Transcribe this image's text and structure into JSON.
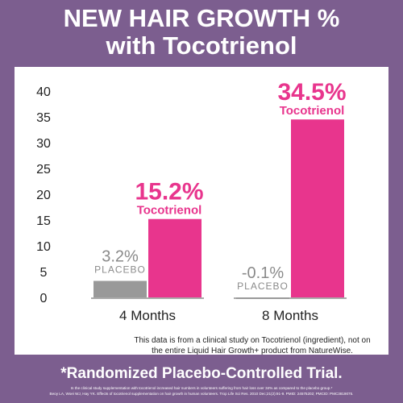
{
  "title": {
    "line1": "NEW HAIR GROWTH %",
    "line2": "with Tocotrienol"
  },
  "colors": {
    "background": "#7c5e8f",
    "tocotrienol": "#e8358d",
    "placebo": "#999999",
    "axis_text": "#222222"
  },
  "note": {
    "line1": "This data is from a clinical study on Tocotrienol (ingredient), not on",
    "line2": "the entire Liquid Hair Growth+ product from NatureWise."
  },
  "footer": {
    "headline": "*Randomized Placebo-Controlled Trial.",
    "citation1": "In the clinical study supplementation with tocotrienol increased hair numbers in volunteers suffering from hair loss over 34% as compared to the placebo group.*",
    "citation2": "Beoy LA, Woei WJ, Hay YK. Effects of tocotrienol supplementation on hair growth in human volunteers. Trop Life Sci Res. 2010 Dec;21(2):91-9. PMID: 24575202; PMCID: PMC3819075."
  },
  "chart_data": {
    "type": "bar",
    "categories": [
      "4 Months",
      "8 Months"
    ],
    "ylim": [
      0,
      40
    ],
    "yticks": [
      0,
      5,
      10,
      15,
      20,
      25,
      30,
      35,
      40
    ],
    "grid": false,
    "series": [
      {
        "name": "PLACEBO",
        "values": [
          3.2,
          -0.1
        ],
        "value_labels": [
          "3.2%",
          "-0.1%"
        ]
      },
      {
        "name": "Tocotrienol",
        "values": [
          15.2,
          34.5
        ],
        "value_labels": [
          "15.2%",
          "34.5%"
        ]
      }
    ]
  }
}
